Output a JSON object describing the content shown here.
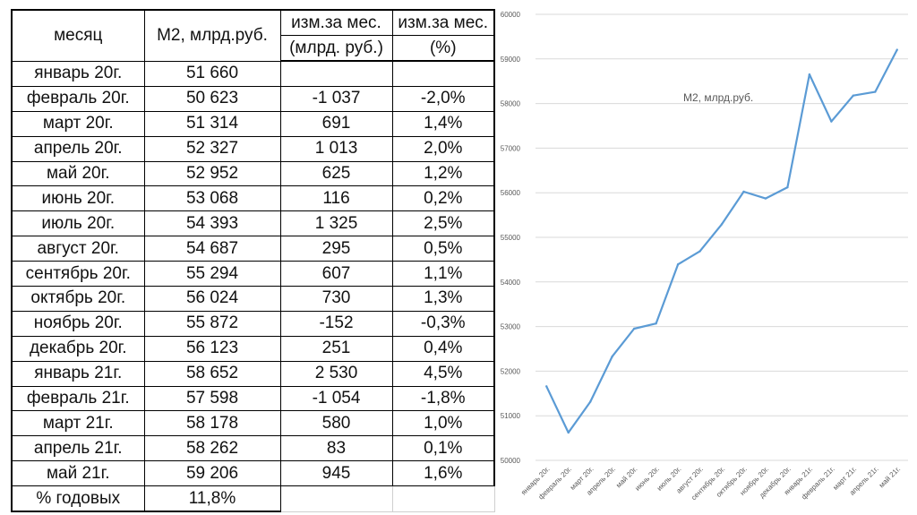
{
  "table": {
    "header": {
      "month": "месяц",
      "m2": "М2, млрд.руб.",
      "change_top": "изм.за мес.",
      "change_abs_unit": "(млрд. руб.)",
      "change_top2": "изм.за мес.",
      "change_pct_unit": "(%)"
    },
    "rows": [
      {
        "month": "январь 20г.",
        "m2": "51 660",
        "abs": "",
        "pct": ""
      },
      {
        "month": "февраль 20г.",
        "m2": "50 623",
        "abs": "-1 037",
        "pct": "-2,0%"
      },
      {
        "month": "март 20г.",
        "m2": "51 314",
        "abs": "691",
        "pct": "1,4%"
      },
      {
        "month": "апрель 20г.",
        "m2": "52 327",
        "abs": "1 013",
        "pct": "2,0%"
      },
      {
        "month": "май 20г.",
        "m2": "52 952",
        "abs": "625",
        "pct": "1,2%"
      },
      {
        "month": "июнь 20г.",
        "m2": "53 068",
        "abs": "116",
        "pct": "0,2%"
      },
      {
        "month": "июль 20г.",
        "m2": "54 393",
        "abs": "1 325",
        "pct": "2,5%"
      },
      {
        "month": "август 20г.",
        "m2": "54 687",
        "abs": "295",
        "pct": "0,5%"
      },
      {
        "month": "сентябрь 20г.",
        "m2": "55 294",
        "abs": "607",
        "pct": "1,1%"
      },
      {
        "month": "октябрь 20г.",
        "m2": "56 024",
        "abs": "730",
        "pct": "1,3%"
      },
      {
        "month": "ноябрь 20г.",
        "m2": "55 872",
        "abs": "-152",
        "pct": "-0,3%"
      },
      {
        "month": "декабрь 20г.",
        "m2": "56 123",
        "abs": "251",
        "pct": "0,4%"
      },
      {
        "month": "январь 21г.",
        "m2": "58 652",
        "abs": "2 530",
        "pct": "4,5%"
      },
      {
        "month": "февраль 21г.",
        "m2": "57 598",
        "abs": "-1 054",
        "pct": "-1,8%"
      },
      {
        "month": "март 21г.",
        "m2": "58 178",
        "abs": "580",
        "pct": "1,0%"
      },
      {
        "month": "апрель 21г.",
        "m2": "58 262",
        "abs": "83",
        "pct": "0,1%"
      },
      {
        "month": "май 21г.",
        "m2": "59 206",
        "abs": "945",
        "pct": "1,6%"
      }
    ],
    "footer": {
      "label": "% годовых",
      "value": "11,8%"
    }
  },
  "chart_data": {
    "type": "line",
    "title": "М2, млрд.руб.",
    "categories": [
      "январь 20г.",
      "февраль 20г.",
      "март 20г.",
      "апрель 20г.",
      "май 20г.",
      "июнь 20г.",
      "июль 20г.",
      "август 20г.",
      "сентябрь 20г.",
      "октябрь 20г.",
      "ноябрь 20г.",
      "декабрь 20г.",
      "январь 21г.",
      "февраль 21г.",
      "март 21г.",
      "апрель 21г.",
      "май 21г."
    ],
    "series": [
      {
        "values": [
          51660,
          50623,
          51314,
          52327,
          52952,
          53068,
          54393,
          54687,
          55294,
          56024,
          55872,
          56123,
          58652,
          57598,
          58178,
          58262,
          59206
        ],
        "color": "#5b9bd5"
      }
    ],
    "yticks": [
      "50000",
      "51000",
      "52000",
      "53000",
      "54000",
      "55000",
      "56000",
      "57000",
      "58000",
      "59000",
      "60000"
    ],
    "ylim": [
      50000,
      60000
    ],
    "grid": true,
    "legend": "none"
  }
}
